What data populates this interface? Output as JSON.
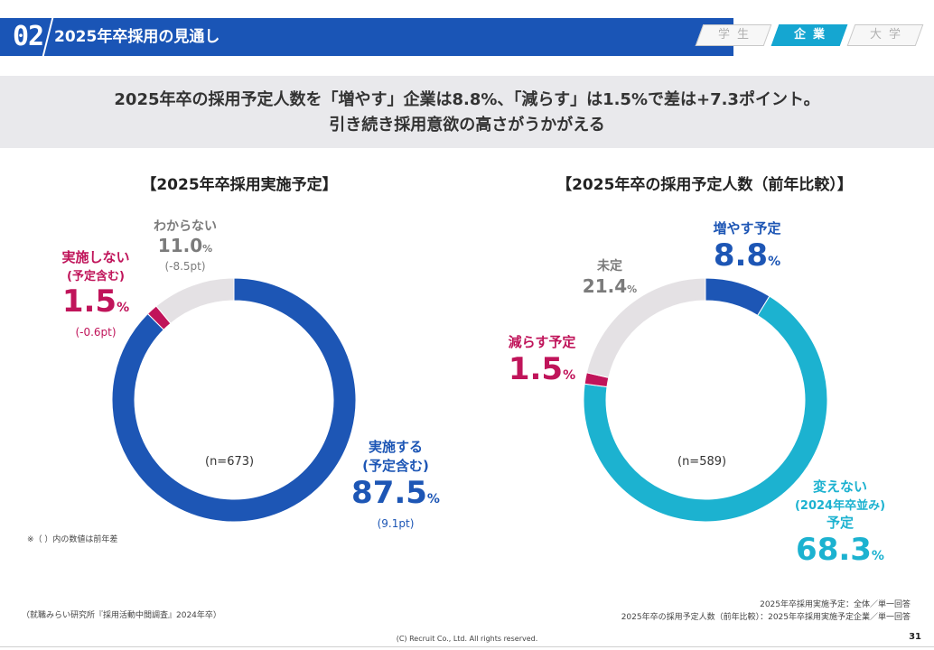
{
  "header": {
    "section_number": "02",
    "title": "2025年卒採用の見通し",
    "tabs": [
      {
        "label": "学生",
        "active": false
      },
      {
        "label": "企業",
        "active": true
      },
      {
        "label": "大学",
        "active": false
      }
    ]
  },
  "summary": {
    "line1": "2025年卒の採用予定人数を「増やす」企業は8.8%、「減らす」は1.5%で差は+7.3ポイント。",
    "line2": "引き続き採用意欲の高さがうかがえる"
  },
  "colors": {
    "header_blue": "#1a55b6",
    "active_tab": "#15a6d1",
    "blue": "#1d56b5",
    "teal": "#1cb2d0",
    "magenta": "#c0145a",
    "gray": "#e4e1e4",
    "gray_text": "#7b7b7b"
  },
  "chart_data": [
    {
      "type": "pie",
      "title": "【2025年卒採用実施予定】",
      "n_label": "(n=673)",
      "slices": [
        {
          "id": "implement",
          "label": "実施する",
          "sublabel": "(予定含む)",
          "value": 87.5,
          "value_text": "87.5",
          "unit": "%",
          "diff": "(9.1pt)",
          "color": "#1d56b5"
        },
        {
          "id": "not-implement",
          "label": "実施しない",
          "sublabel": "(予定含む)",
          "value": 1.5,
          "value_text": "1.5",
          "unit": "%",
          "diff": "(-0.6pt)",
          "color": "#c0145a"
        },
        {
          "id": "unknown",
          "label": "わからない",
          "sublabel": "",
          "value": 11.0,
          "value_text": "11.0",
          "unit": "%",
          "diff": "(-8.5pt)",
          "color": "#e4e1e4"
        }
      ]
    },
    {
      "type": "pie",
      "title": "【2025年卒の採用予定人数（前年比較）】",
      "n_label": "(n=589)",
      "slices": [
        {
          "id": "increase",
          "label": "増やす予定",
          "sublabel": "",
          "value": 8.8,
          "value_text": "8.8",
          "unit": "%",
          "diff": "",
          "color": "#1d56b5"
        },
        {
          "id": "same",
          "label": "変えない",
          "sublabel": "(2024年卒並み)",
          "label2": "予定",
          "value": 68.3,
          "value_text": "68.3",
          "unit": "%",
          "diff": "",
          "color": "#1cb2d0"
        },
        {
          "id": "decrease",
          "label": "減らす予定",
          "sublabel": "",
          "value": 1.5,
          "value_text": "1.5",
          "unit": "%",
          "diff": "",
          "color": "#c0145a"
        },
        {
          "id": "undecided",
          "label": "未定",
          "sublabel": "",
          "value": 21.4,
          "value_text": "21.4",
          "unit": "%",
          "diff": "",
          "color": "#e4e1e4"
        }
      ]
    }
  ],
  "footer": {
    "note_diff": "※（ ）内の数値は前年差",
    "source": "（就職みらい研究所『採用活動中間調査』2024年卒）",
    "scope_line1": "2025年卒採用実施予定：全体／単一回答",
    "scope_line2": "2025年卒の採用予定人数（前年比較）：2025年卒採用実施予定企業／単一回答",
    "copyright": "(C) Recruit Co., Ltd. All rights reserved.",
    "page_number": "31"
  }
}
